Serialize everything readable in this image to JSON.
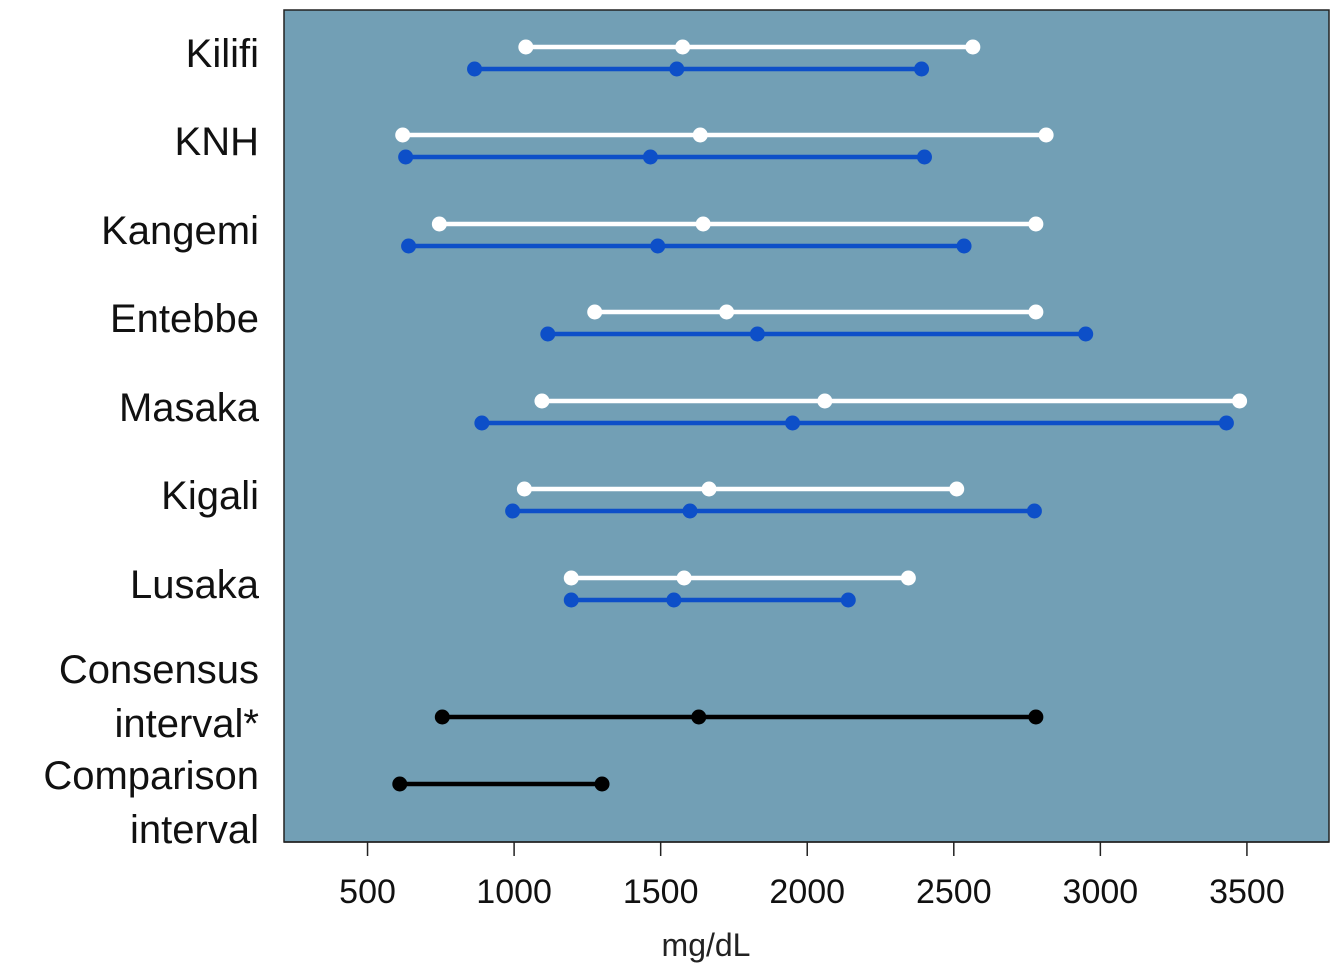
{
  "chart_data": {
    "type": "dot-range",
    "xlabel": "mg/dL",
    "xlim": [
      215,
      3780
    ],
    "x_ticks": [
      500,
      1000,
      1500,
      2000,
      2500,
      3000,
      3500
    ],
    "tick_labels": [
      "500",
      "1000",
      "1500",
      "2000",
      "2500",
      "3000",
      "3500"
    ],
    "background_color": "#729fb5",
    "grid": false,
    "categories": [
      {
        "label_lines": [
          "Kilifi"
        ],
        "intervals": [
          {
            "color": "#ffffff",
            "low": 1040,
            "mid": 1575,
            "high": 2565
          },
          {
            "color": "#0d4fc8",
            "low": 865,
            "mid": 1555,
            "high": 2390
          }
        ]
      },
      {
        "label_lines": [
          "KNH"
        ],
        "intervals": [
          {
            "color": "#ffffff",
            "low": 620,
            "mid": 1635,
            "high": 2815
          },
          {
            "color": "#0d4fc8",
            "low": 630,
            "mid": 1465,
            "high": 2400
          }
        ]
      },
      {
        "label_lines": [
          "Kangemi"
        ],
        "intervals": [
          {
            "color": "#ffffff",
            "low": 745,
            "mid": 1645,
            "high": 2780
          },
          {
            "color": "#0d4fc8",
            "low": 640,
            "mid": 1490,
            "high": 2535
          }
        ]
      },
      {
        "label_lines": [
          "Entebbe"
        ],
        "intervals": [
          {
            "color": "#ffffff",
            "low": 1275,
            "mid": 1725,
            "high": 2780
          },
          {
            "color": "#0d4fc8",
            "low": 1115,
            "mid": 1830,
            "high": 2950
          }
        ]
      },
      {
        "label_lines": [
          "Masaka"
        ],
        "intervals": [
          {
            "color": "#ffffff",
            "low": 1095,
            "mid": 2060,
            "high": 3475
          },
          {
            "color": "#0d4fc8",
            "low": 890,
            "mid": 1950,
            "high": 3430
          }
        ]
      },
      {
        "label_lines": [
          "Kigali"
        ],
        "intervals": [
          {
            "color": "#ffffff",
            "low": 1035,
            "mid": 1665,
            "high": 2510
          },
          {
            "color": "#0d4fc8",
            "low": 995,
            "mid": 1600,
            "high": 2775
          }
        ]
      },
      {
        "label_lines": [
          "Lusaka"
        ],
        "intervals": [
          {
            "color": "#ffffff",
            "low": 1195,
            "mid": 1580,
            "high": 2345
          },
          {
            "color": "#0d4fc8",
            "low": 1195,
            "mid": 1545,
            "high": 2140
          }
        ]
      },
      {
        "label_lines": [
          "Consensus",
          "interval*"
        ],
        "intervals": [
          {
            "color": "#000000",
            "low": 755,
            "mid": 1630,
            "high": 2780
          }
        ]
      },
      {
        "label_lines": [
          "Comparison",
          "interval"
        ],
        "intervals": [
          {
            "color": "#000000",
            "low": 610,
            "high": 1300
          }
        ]
      }
    ]
  }
}
